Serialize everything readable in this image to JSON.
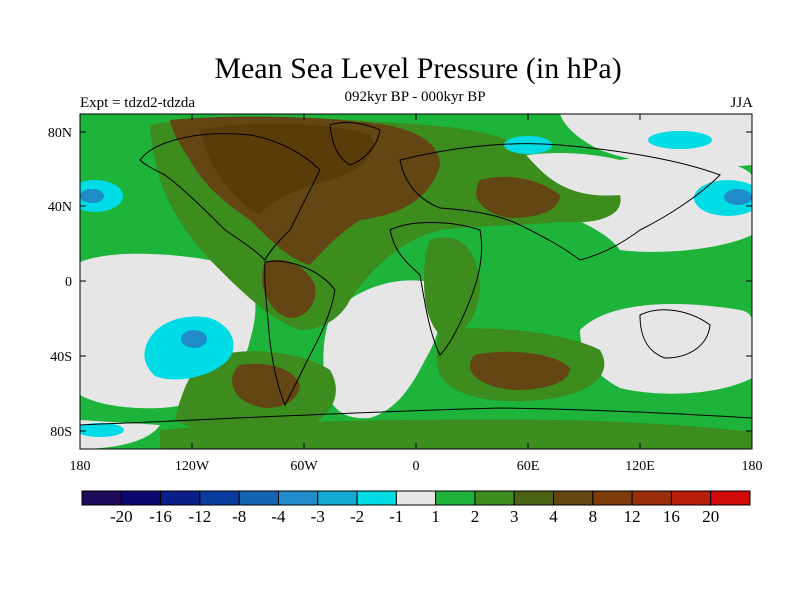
{
  "title": "Mean Sea Level Pressure (in hPa)",
  "subtitle_center": "092kyr BP - 000kyr BP",
  "subtitle_left": "Expt = tdzd2-tdzda",
  "subtitle_right": "JJA",
  "lat_ticks": [
    "80N",
    "40N",
    "0",
    "40S",
    "80S"
  ],
  "lon_ticks": [
    "180",
    "120W",
    "60W",
    "0",
    "60E",
    "120E",
    "180"
  ],
  "colorbar": {
    "colors": [
      "#1e0a5a",
      "#0a0a6e",
      "#0a1e8c",
      "#0a3ca0",
      "#1464b4",
      "#1e8cc8",
      "#14aad2",
      "#00dce6",
      "#e6e6e6",
      "#1eb43c",
      "#3c8c1e",
      "#4b6414",
      "#644614",
      "#7d3c0a",
      "#9b2d0a",
      "#b91e0a",
      "#d20a0a"
    ],
    "labels": [
      "-20",
      "-16",
      "-12",
      "-8",
      "-4",
      "-3",
      "-2",
      "-1",
      "1",
      "2",
      "3",
      "4",
      "8",
      "12",
      "16",
      "20"
    ]
  },
  "fill_colors": {
    "green": "#1eb43c",
    "light": "#e6e6e6",
    "olive": "#3c8c1e",
    "brown": "#644614",
    "dark": "#5a3c0a",
    "cyan": "#00dce6",
    "blue": "#1e8cc8"
  }
}
